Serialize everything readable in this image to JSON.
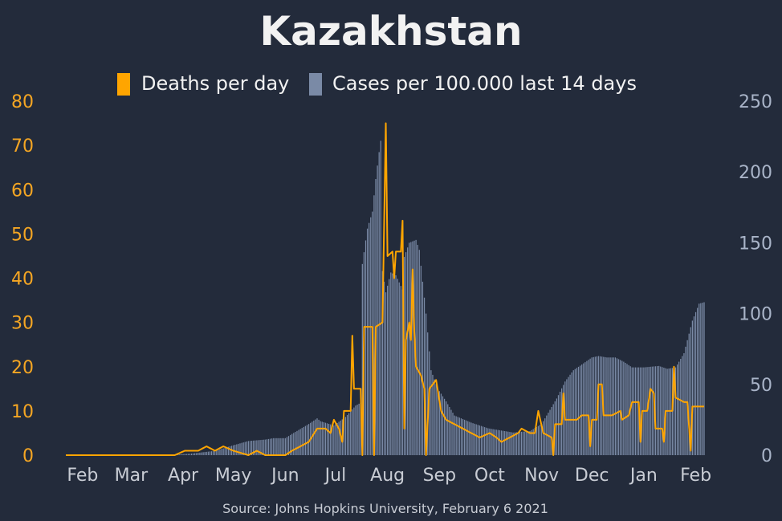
{
  "chart_data": {
    "type": "bar+line",
    "title": "Kazakhstan",
    "source": "Source: Johns Hopkins University, February 6 2021",
    "legend": [
      {
        "name": "Deaths per day",
        "color": "#ffa500"
      },
      {
        "name": "Cases per 100.000 last 14 days",
        "color": "#7a8aa6"
      }
    ],
    "legend_position": "top-center",
    "start_date": "2020-01-22",
    "end_date": "2021-02-06",
    "x_ticks": [
      "Feb",
      "Mar",
      "Apr",
      "May",
      "Jun",
      "Jul",
      "Aug",
      "Sep",
      "Oct",
      "Nov",
      "Dec",
      "Jan",
      "Feb"
    ],
    "y_left": {
      "label": "",
      "min": 0,
      "max": 80,
      "ticks": [
        0,
        10,
        20,
        30,
        40,
        50,
        60,
        70,
        80
      ],
      "color": "#f5a623"
    },
    "y_right": {
      "label": "",
      "min": 0,
      "max": 250,
      "ticks": [
        0,
        50,
        100,
        150,
        200,
        250
      ],
      "color": "#a9b4c8"
    },
    "grid": false,
    "cases_per_100k_14d": [
      [
        "2020-01-22",
        0
      ],
      [
        "2020-03-13",
        0
      ],
      [
        "2020-03-25",
        0.3
      ],
      [
        "2020-04-05",
        1
      ],
      [
        "2020-04-20",
        3
      ],
      [
        "2020-05-01",
        7
      ],
      [
        "2020-05-10",
        10
      ],
      [
        "2020-05-20",
        11
      ],
      [
        "2020-05-25",
        12
      ],
      [
        "2020-06-01",
        12
      ],
      [
        "2020-06-05",
        15
      ],
      [
        "2020-06-15",
        22
      ],
      [
        "2020-06-20",
        26
      ],
      [
        "2020-06-22",
        24
      ],
      [
        "2020-06-30",
        21
      ],
      [
        "2020-07-07",
        27
      ],
      [
        "2020-07-13",
        35
      ],
      [
        "2020-07-16",
        37
      ],
      [
        "2020-07-17",
        135
      ],
      [
        "2020-07-20",
        160
      ],
      [
        "2020-07-23",
        172
      ],
      [
        "2020-07-25",
        195
      ],
      [
        "2020-07-27",
        214
      ],
      [
        "2020-07-28",
        222
      ],
      [
        "2020-07-29",
        130
      ],
      [
        "2020-07-31",
        115
      ],
      [
        "2020-08-03",
        129
      ],
      [
        "2020-08-06",
        127
      ],
      [
        "2020-08-10",
        117
      ],
      [
        "2020-08-11",
        140
      ],
      [
        "2020-08-14",
        150
      ],
      [
        "2020-08-18",
        152
      ],
      [
        "2020-08-20",
        145
      ],
      [
        "2020-08-24",
        100
      ],
      [
        "2020-08-27",
        60
      ],
      [
        "2020-08-31",
        47
      ],
      [
        "2020-09-05",
        38
      ],
      [
        "2020-09-10",
        28
      ],
      [
        "2020-09-20",
        23
      ],
      [
        "2020-09-30",
        19
      ],
      [
        "2020-10-15",
        16
      ],
      [
        "2020-10-25",
        17
      ],
      [
        "2020-11-01",
        22
      ],
      [
        "2020-11-05",
        30
      ],
      [
        "2020-11-10",
        40
      ],
      [
        "2020-11-15",
        52
      ],
      [
        "2020-11-20",
        60
      ],
      [
        "2020-11-25",
        64
      ],
      [
        "2020-12-01",
        69
      ],
      [
        "2020-12-05",
        70
      ],
      [
        "2020-12-10",
        69
      ],
      [
        "2020-12-15",
        69
      ],
      [
        "2020-12-20",
        66
      ],
      [
        "2020-12-25",
        62
      ],
      [
        "2021-01-01",
        62
      ],
      [
        "2021-01-10",
        63
      ],
      [
        "2021-01-15",
        61
      ],
      [
        "2021-01-20",
        62
      ],
      [
        "2021-01-25",
        72
      ],
      [
        "2021-01-30",
        95
      ],
      [
        "2021-02-03",
        107
      ],
      [
        "2021-02-06",
        108
      ]
    ],
    "deaths_per_day": [
      [
        "2020-01-22",
        0
      ],
      [
        "2020-03-27",
        0
      ],
      [
        "2020-04-02",
        1
      ],
      [
        "2020-04-10",
        1
      ],
      [
        "2020-04-15",
        2
      ],
      [
        "2020-04-20",
        1
      ],
      [
        "2020-04-25",
        2
      ],
      [
        "2020-05-01",
        1
      ],
      [
        "2020-05-10",
        0
      ],
      [
        "2020-05-15",
        1
      ],
      [
        "2020-05-20",
        0
      ],
      [
        "2020-06-01",
        0
      ],
      [
        "2020-06-05",
        1
      ],
      [
        "2020-06-10",
        2
      ],
      [
        "2020-06-15",
        3
      ],
      [
        "2020-06-20",
        6
      ],
      [
        "2020-06-25",
        6
      ],
      [
        "2020-06-28",
        5
      ],
      [
        "2020-06-30",
        8
      ],
      [
        "2020-07-03",
        6
      ],
      [
        "2020-07-05",
        3
      ],
      [
        "2020-07-06",
        10
      ],
      [
        "2020-07-10",
        10
      ],
      [
        "2020-07-11",
        27
      ],
      [
        "2020-07-12",
        15
      ],
      [
        "2020-07-16",
        15
      ],
      [
        "2020-07-17",
        0
      ],
      [
        "2020-07-18",
        29
      ],
      [
        "2020-07-23",
        29
      ],
      [
        "2020-07-24",
        0
      ],
      [
        "2020-07-25",
        29
      ],
      [
        "2020-07-29",
        30
      ],
      [
        "2020-07-31",
        75
      ],
      [
        "2020-08-01",
        45
      ],
      [
        "2020-08-04",
        46
      ],
      [
        "2020-08-05",
        40
      ],
      [
        "2020-08-06",
        46
      ],
      [
        "2020-08-09",
        46
      ],
      [
        "2020-08-10",
        53
      ],
      [
        "2020-08-11",
        6
      ],
      [
        "2020-08-12",
        26
      ],
      [
        "2020-08-14",
        30
      ],
      [
        "2020-08-15",
        26
      ],
      [
        "2020-08-16",
        42
      ],
      [
        "2020-08-17",
        28
      ],
      [
        "2020-08-18",
        20
      ],
      [
        "2020-08-21",
        18
      ],
      [
        "2020-08-23",
        15
      ],
      [
        "2020-08-24",
        0
      ],
      [
        "2020-08-26",
        15
      ],
      [
        "2020-08-30",
        17
      ],
      [
        "2020-09-02",
        10
      ],
      [
        "2020-09-05",
        8
      ],
      [
        "2020-09-10",
        7
      ],
      [
        "2020-09-15",
        6
      ],
      [
        "2020-09-20",
        5
      ],
      [
        "2020-09-25",
        4
      ],
      [
        "2020-10-01",
        5
      ],
      [
        "2020-10-05",
        4
      ],
      [
        "2020-10-08",
        3
      ],
      [
        "2020-10-13",
        4
      ],
      [
        "2020-10-18",
        5
      ],
      [
        "2020-10-20",
        6
      ],
      [
        "2020-10-25",
        5
      ],
      [
        "2020-10-28",
        5
      ],
      [
        "2020-10-30",
        10
      ],
      [
        "2020-11-02",
        5
      ],
      [
        "2020-11-07",
        4
      ],
      [
        "2020-11-08",
        0
      ],
      [
        "2020-11-09",
        7
      ],
      [
        "2020-11-13",
        7
      ],
      [
        "2020-11-14",
        14
      ],
      [
        "2020-11-15",
        8
      ],
      [
        "2020-11-22",
        8
      ],
      [
        "2020-11-25",
        9
      ],
      [
        "2020-11-29",
        9
      ],
      [
        "2020-11-30",
        2
      ],
      [
        "2020-12-01",
        8
      ],
      [
        "2020-12-04",
        8
      ],
      [
        "2020-12-05",
        16
      ],
      [
        "2020-12-07",
        16
      ],
      [
        "2020-12-08",
        9
      ],
      [
        "2020-12-13",
        9
      ],
      [
        "2020-12-18",
        10
      ],
      [
        "2020-12-19",
        8
      ],
      [
        "2020-12-23",
        9
      ],
      [
        "2020-12-25",
        12
      ],
      [
        "2020-12-29",
        12
      ],
      [
        "2020-12-30",
        3
      ],
      [
        "2020-12-31",
        10
      ],
      [
        "2021-01-03",
        10
      ],
      [
        "2021-01-05",
        15
      ],
      [
        "2021-01-07",
        14
      ],
      [
        "2021-01-08",
        6
      ],
      [
        "2021-01-12",
        6
      ],
      [
        "2021-01-13",
        3
      ],
      [
        "2021-01-14",
        10
      ],
      [
        "2021-01-18",
        10
      ],
      [
        "2021-01-19",
        20
      ],
      [
        "2021-01-20",
        13
      ],
      [
        "2021-01-25",
        12
      ],
      [
        "2021-01-27",
        12
      ],
      [
        "2021-01-29",
        1
      ],
      [
        "2021-01-30",
        11
      ]
    ]
  }
}
